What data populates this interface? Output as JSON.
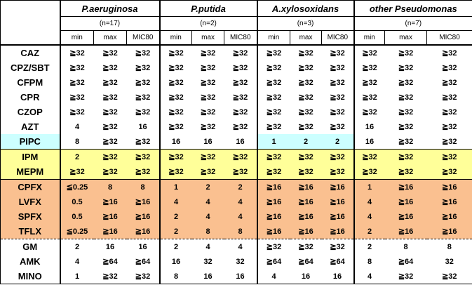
{
  "organisms": [
    {
      "name": "P.aeruginosa",
      "n": "(n=17)"
    },
    {
      "name": "P.putida",
      "n": "(n=2)"
    },
    {
      "name": "A.xylosoxidans",
      "n": "(n=3)"
    },
    {
      "name": "other Pseudomonas",
      "n": "(n=7)"
    }
  ],
  "sub_headers": [
    "min",
    "max",
    "MIC80"
  ],
  "colors": {
    "white": "#ffffff",
    "cyan": "#ccffff",
    "yellow": "#ffff99",
    "orange": "#fac090"
  },
  "rows": [
    {
      "drug": "CAZ",
      "group": "white",
      "values": [
        [
          "≧32",
          "≧32",
          "≧32"
        ],
        [
          "≧32",
          "≧32",
          "≧32"
        ],
        [
          "≧32",
          "≧32",
          "≧32"
        ],
        [
          "≧32",
          "≧32",
          "≧32"
        ]
      ]
    },
    {
      "drug": "CPZ/SBT",
      "group": "white",
      "values": [
        [
          "≧32",
          "≧32",
          "≧32"
        ],
        [
          "≧32",
          "≧32",
          "≧32"
        ],
        [
          "≧32",
          "≧32",
          "≧32"
        ],
        [
          "≧32",
          "≧32",
          "≧32"
        ]
      ]
    },
    {
      "drug": "CFPM",
      "group": "white",
      "values": [
        [
          "≧32",
          "≧32",
          "≧32"
        ],
        [
          "≧32",
          "≧32",
          "≧32"
        ],
        [
          "≧32",
          "≧32",
          "≧32"
        ],
        [
          "≧32",
          "≧32",
          "≧32"
        ]
      ]
    },
    {
      "drug": "CPR",
      "group": "white",
      "values": [
        [
          "≧32",
          "≧32",
          "≧32"
        ],
        [
          "≧32",
          "≧32",
          "≧32"
        ],
        [
          "≧32",
          "≧32",
          "≧32"
        ],
        [
          "≧32",
          "≧32",
          "≧32"
        ]
      ]
    },
    {
      "drug": "CZOP",
      "group": "white",
      "values": [
        [
          "≧32",
          "≧32",
          "≧32"
        ],
        [
          "≧32",
          "≧32",
          "≧32"
        ],
        [
          "≧32",
          "≧32",
          "≧32"
        ],
        [
          "≧32",
          "≧32",
          "≧32"
        ]
      ]
    },
    {
      "drug": "AZT",
      "group": "white",
      "values": [
        [
          "4",
          "≧32",
          "16"
        ],
        [
          "≧32",
          "≧32",
          "≧32"
        ],
        [
          "≧32",
          "≧32",
          "≧32"
        ],
        [
          "16",
          "≧32",
          "≧32"
        ]
      ]
    },
    {
      "drug": "PIPC",
      "group": "white",
      "drug_bg": "cyan",
      "values": [
        [
          "8",
          "≧32",
          "≧32"
        ],
        [
          "16",
          "16",
          "16"
        ],
        [
          "1",
          "2",
          "2"
        ],
        [
          "16",
          "≧32",
          "≧32"
        ]
      ],
      "cell_bg": [
        null,
        null,
        "cyan",
        null
      ]
    },
    {
      "drug": "IPM",
      "group": "yellow",
      "values": [
        [
          "2",
          "≧32",
          "≧32"
        ],
        [
          "≧32",
          "≧32",
          "≧32"
        ],
        [
          "≧32",
          "≧32",
          "≧32"
        ],
        [
          "≧32",
          "≧32",
          "≧32"
        ]
      ]
    },
    {
      "drug": "MEPM",
      "group": "yellow",
      "values": [
        [
          "≧32",
          "≧32",
          "≧32"
        ],
        [
          "≧32",
          "≧32",
          "≧32"
        ],
        [
          "≧32",
          "≧32",
          "≧32"
        ],
        [
          "≧32",
          "≧32",
          "≧32"
        ]
      ]
    },
    {
      "drug": "CPFX",
      "group": "orange",
      "values": [
        [
          "≦0.25",
          "8",
          "8"
        ],
        [
          "1",
          "2",
          "2"
        ],
        [
          "≧16",
          "≧16",
          "≧16"
        ],
        [
          "1",
          "≧16",
          "≧16"
        ]
      ]
    },
    {
      "drug": "LVFX",
      "group": "orange",
      "values": [
        [
          "0.5",
          "≧16",
          "≧16"
        ],
        [
          "4",
          "4",
          "4"
        ],
        [
          "≧16",
          "≧16",
          "≧16"
        ],
        [
          "4",
          "≧16",
          "≧16"
        ]
      ]
    },
    {
      "drug": "SPFX",
      "group": "orange",
      "values": [
        [
          "0.5",
          "≧16",
          "≧16"
        ],
        [
          "2",
          "4",
          "4"
        ],
        [
          "≧16",
          "≧16",
          "≧16"
        ],
        [
          "4",
          "≧16",
          "≧16"
        ]
      ]
    },
    {
      "drug": "TFLX",
      "group": "orange",
      "values": [
        [
          "≦0.25",
          "≧16",
          "≧16"
        ],
        [
          "2",
          "8",
          "8"
        ],
        [
          "≧16",
          "≧16",
          "≧16"
        ],
        [
          "2",
          "≧16",
          "≧16"
        ]
      ]
    },
    {
      "drug": "GM",
      "group": "white",
      "values": [
        [
          "2",
          "16",
          "16"
        ],
        [
          "2",
          "4",
          "4"
        ],
        [
          "≧32",
          "≧32",
          "≧32"
        ],
        [
          "2",
          "8",
          "8"
        ]
      ]
    },
    {
      "drug": "AMK",
      "group": "white",
      "values": [
        [
          "4",
          "≧64",
          "≧64"
        ],
        [
          "16",
          "32",
          "32"
        ],
        [
          "≧64",
          "≧64",
          "≧64"
        ],
        [
          "8",
          "≧64",
          "32"
        ]
      ]
    },
    {
      "drug": "MINO",
      "group": "white",
      "values": [
        [
          "1",
          "≧32",
          "≧32"
        ],
        [
          "8",
          "16",
          "16"
        ],
        [
          "4",
          "16",
          "16"
        ],
        [
          "4",
          "≧32",
          "≧32"
        ]
      ]
    }
  ]
}
